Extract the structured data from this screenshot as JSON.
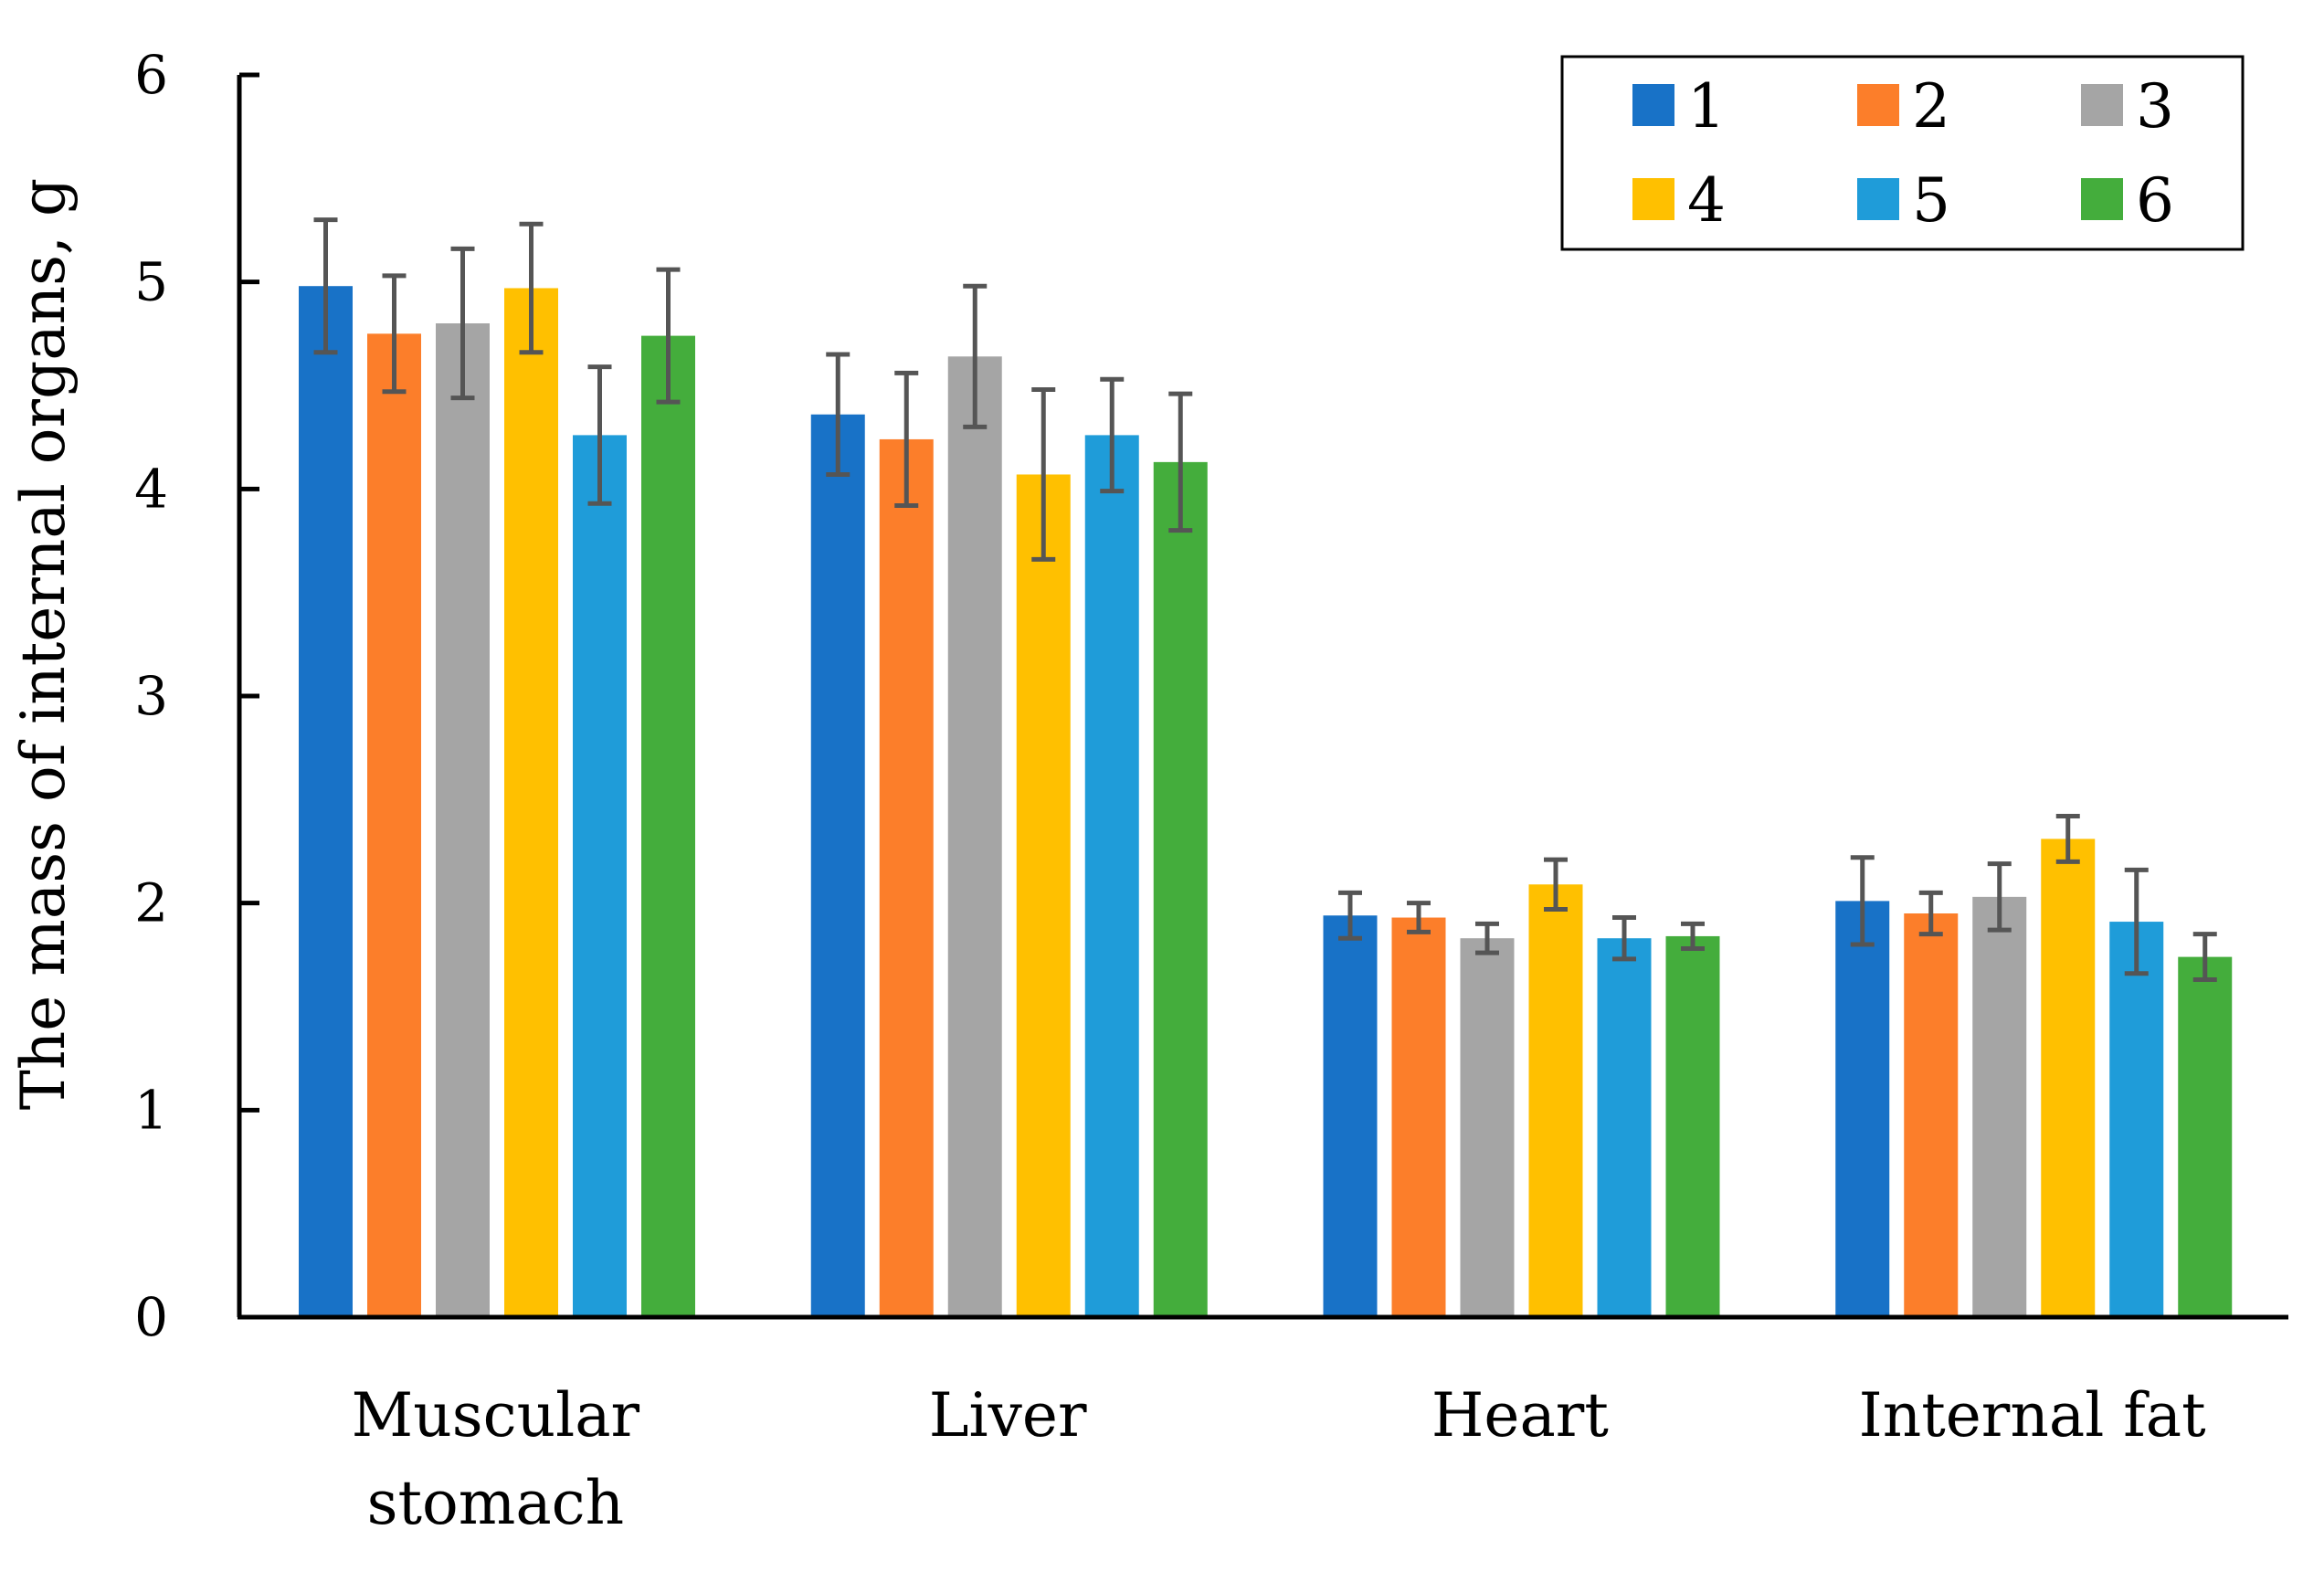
{
  "chart_data": {
    "type": "bar",
    "title": "",
    "xlabel": "",
    "ylabel": "The mass of internal organs, g",
    "ylim": [
      0,
      6
    ],
    "yticks": [
      0,
      1,
      2,
      3,
      4,
      5,
      6
    ],
    "grid": false,
    "legend_position": "top-right",
    "categories": [
      [
        "Muscular",
        "stomach"
      ],
      [
        "Liver"
      ],
      [
        "Heart"
      ],
      [
        "Internal fat"
      ]
    ],
    "series": [
      {
        "name": "1",
        "color": "#1872C7",
        "values": [
          4.98,
          4.36,
          1.94,
          2.01
        ],
        "errors": [
          0.32,
          0.29,
          0.11,
          0.21
        ]
      },
      {
        "name": "2",
        "color": "#FC7E2A",
        "values": [
          4.75,
          4.24,
          1.93,
          1.95
        ],
        "errors": [
          0.28,
          0.32,
          0.07,
          0.1
        ]
      },
      {
        "name": "3",
        "color": "#A5A5A5",
        "values": [
          4.8,
          4.64,
          1.83,
          2.03
        ],
        "errors": [
          0.36,
          0.34,
          0.07,
          0.16
        ]
      },
      {
        "name": "4",
        "color": "#FFC000",
        "values": [
          4.97,
          4.07,
          2.09,
          2.31
        ],
        "errors": [
          0.31,
          0.41,
          0.12,
          0.11
        ]
      },
      {
        "name": "5",
        "color": "#1F9CD9",
        "values": [
          4.26,
          4.26,
          1.83,
          1.91
        ],
        "errors": [
          0.33,
          0.27,
          0.1,
          0.25
        ]
      },
      {
        "name": "6",
        "color": "#44AD3C",
        "values": [
          4.74,
          4.13,
          1.84,
          1.74
        ],
        "errors": [
          0.32,
          0.33,
          0.06,
          0.11
        ]
      }
    ]
  }
}
